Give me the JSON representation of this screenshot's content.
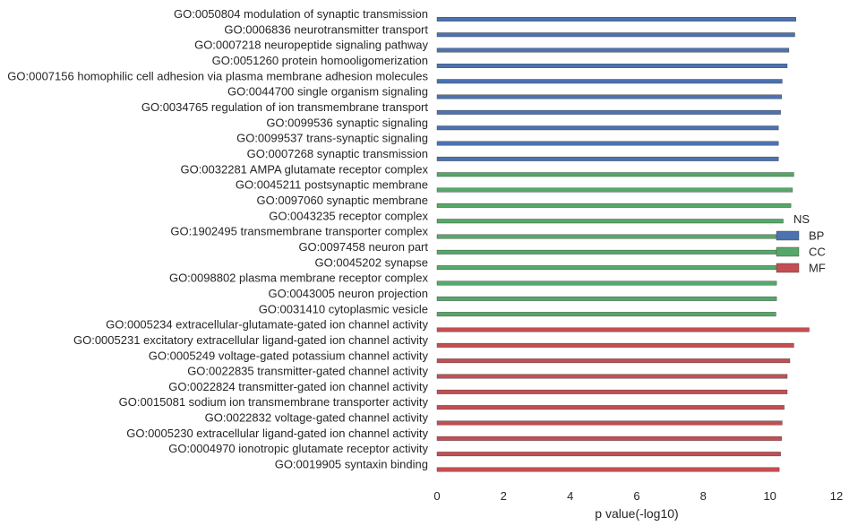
{
  "chart_data": {
    "type": "bar",
    "orientation": "horizontal",
    "title": "",
    "xlabel": "p value(-log10)",
    "ylabel": "",
    "xlim": [
      0,
      12
    ],
    "x_ticks": [
      "0",
      "2",
      "4",
      "6",
      "8",
      "10",
      "12"
    ],
    "grid": false,
    "legend": {
      "title": "NS",
      "placement": "right",
      "entries": [
        {
          "name": "BP",
          "color": "#4c72b0"
        },
        {
          "name": "CC",
          "color": "#55a868"
        },
        {
          "name": "MF",
          "color": "#c44e52"
        }
      ]
    },
    "bars": [
      {
        "label": "GO:0050804 modulation of synaptic transmission",
        "value": 10.78,
        "group": "BP"
      },
      {
        "label": "GO:0006836 neurotransmitter transport",
        "value": 10.75,
        "group": "BP"
      },
      {
        "label": "GO:0007218 neuropeptide signaling pathway",
        "value": 10.57,
        "group": "BP"
      },
      {
        "label": "GO:0051260 protein homooligomerization",
        "value": 10.52,
        "group": "BP"
      },
      {
        "label": "GO:0007156 homophilic cell adhesion via plasma membrane adhesion molecules",
        "value": 10.37,
        "group": "BP"
      },
      {
        "label": "GO:0044700 single organism signaling",
        "value": 10.35,
        "group": "BP"
      },
      {
        "label": "GO:0034765 regulation of ion transmembrane transport",
        "value": 10.32,
        "group": "BP"
      },
      {
        "label": "GO:0099536 synaptic signaling",
        "value": 10.26,
        "group": "BP"
      },
      {
        "label": "GO:0099537 trans-synaptic signaling",
        "value": 10.26,
        "group": "BP"
      },
      {
        "label": "GO:0007268 synaptic transmission",
        "value": 10.26,
        "group": "BP"
      },
      {
        "label": "GO:0032281 AMPA glutamate receptor complex",
        "value": 10.72,
        "group": "CC"
      },
      {
        "label": "GO:0045211 postsynaptic membrane",
        "value": 10.68,
        "group": "CC"
      },
      {
        "label": "GO:0097060 synaptic membrane",
        "value": 10.63,
        "group": "CC"
      },
      {
        "label": "GO:0043235 receptor complex",
        "value": 10.4,
        "group": "CC"
      },
      {
        "label": "GO:1902495 transmembrane transporter complex",
        "value": 10.3,
        "group": "CC"
      },
      {
        "label": "GO:0097458 neuron part",
        "value": 10.28,
        "group": "CC"
      },
      {
        "label": "GO:0045202 synapse",
        "value": 10.26,
        "group": "CC"
      },
      {
        "label": "GO:0098802 plasma membrane receptor complex",
        "value": 10.2,
        "group": "CC"
      },
      {
        "label": "GO:0043005 neuron projection",
        "value": 10.2,
        "group": "CC"
      },
      {
        "label": "GO:0031410 cytoplasmic vesicle",
        "value": 10.18,
        "group": "CC"
      },
      {
        "label": "GO:0005234 extracellular-glutamate-gated ion channel activity",
        "value": 11.18,
        "group": "MF"
      },
      {
        "label": "GO:0005231 excitatory extracellular ligand-gated ion channel activity",
        "value": 10.72,
        "group": "MF"
      },
      {
        "label": "GO:0005249 voltage-gated potassium channel activity",
        "value": 10.6,
        "group": "MF"
      },
      {
        "label": "GO:0022835 transmitter-gated channel activity",
        "value": 10.52,
        "group": "MF"
      },
      {
        "label": "GO:0022824 transmitter-gated ion channel activity",
        "value": 10.52,
        "group": "MF"
      },
      {
        "label": "GO:0015081 sodium ion transmembrane transporter activity",
        "value": 10.43,
        "group": "MF"
      },
      {
        "label": "GO:0022832 voltage-gated channel activity",
        "value": 10.37,
        "group": "MF"
      },
      {
        "label": "GO:0005230 extracellular ligand-gated ion channel activity",
        "value": 10.35,
        "group": "MF"
      },
      {
        "label": "GO:0004970 ionotropic glutamate receptor activity",
        "value": 10.32,
        "group": "MF"
      },
      {
        "label": "GO:0019905 syntaxin binding",
        "value": 10.28,
        "group": "MF"
      }
    ]
  }
}
